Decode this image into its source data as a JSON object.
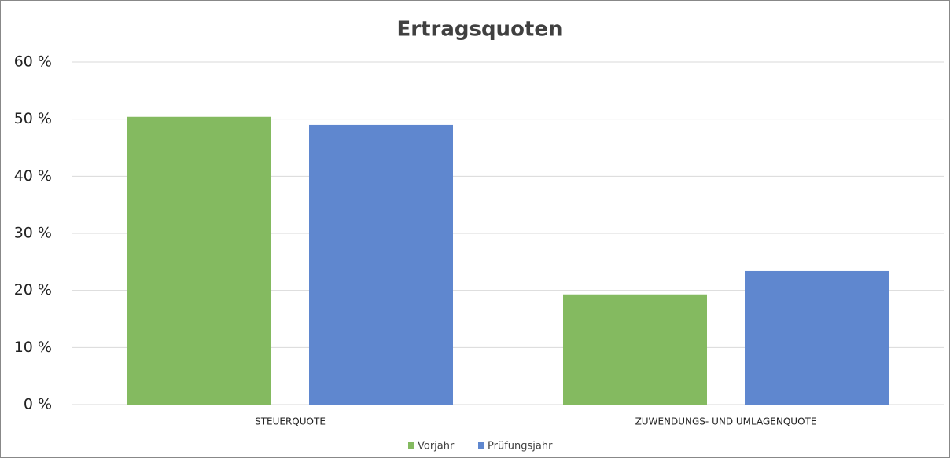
{
  "chart_data": {
    "type": "bar",
    "title": "Ertragsquoten",
    "categories": [
      "STEUERQUOTE",
      "ZUWENDUNGS- UND UMLAGENQUOTE"
    ],
    "series": [
      {
        "name": "Vorjahr",
        "color": "#84ba60",
        "values": [
          50.4,
          19.3
        ]
      },
      {
        "name": "Prüfungsjahr",
        "color": "#5f87cf",
        "values": [
          49.0,
          23.4
        ]
      }
    ],
    "ylim": [
      0,
      60
    ],
    "yticks": [
      {
        "value": 0,
        "label": "0 %"
      },
      {
        "value": 10,
        "label": "10 %"
      },
      {
        "value": 20,
        "label": "20 %"
      },
      {
        "value": 30,
        "label": "30 %"
      },
      {
        "value": 40,
        "label": "40 %"
      },
      {
        "value": 50,
        "label": "50 %"
      },
      {
        "value": 60,
        "label": "60 %"
      }
    ],
    "grid": true,
    "legend": "bottom"
  }
}
